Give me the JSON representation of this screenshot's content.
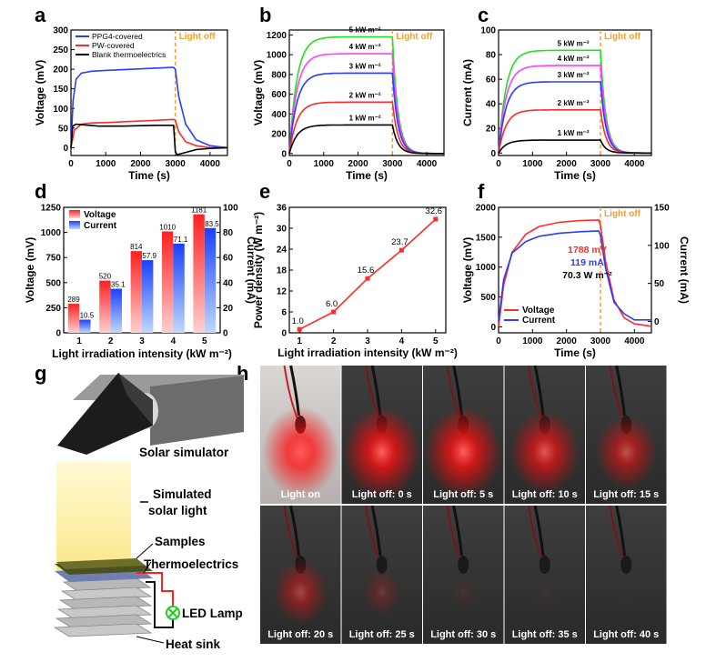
{
  "colors": {
    "red": "#ff2a2a",
    "blue": "#2a3cff",
    "black": "#000000",
    "green": "#22e022",
    "magenta": "#ff40ff",
    "orange": "#f0a030"
  },
  "panels": {
    "a": "a",
    "b": "b",
    "c": "c",
    "d": "d",
    "e": "e",
    "f": "f",
    "g": "g",
    "h": "h"
  },
  "chart_data": [
    {
      "panel": "a",
      "type": "line",
      "xlabel": "Time (s)",
      "ylabel": "Voltage (mV)",
      "xlim": [
        0,
        4500
      ],
      "ylim": [
        -20,
        300
      ],
      "xticks": [
        0,
        1000,
        2000,
        3000,
        4000
      ],
      "yticks": [
        0,
        50,
        100,
        150,
        200,
        250,
        300
      ],
      "annotation": "Light off",
      "light_off_x": 3000,
      "series": [
        {
          "name": "PPG4-covered",
          "color": "blue",
          "x": [
            0,
            60,
            150,
            300,
            600,
            1000,
            1500,
            2000,
            2500,
            2950,
            3000,
            3100,
            3300,
            3600,
            4000,
            4500
          ],
          "y": [
            0,
            120,
            175,
            190,
            195,
            197,
            199,
            201,
            203,
            205,
            200,
            130,
            60,
            20,
            5,
            0
          ]
        },
        {
          "name": "PW-covered",
          "color": "red",
          "x": [
            0,
            100,
            300,
            600,
            1000,
            1500,
            2000,
            2500,
            2950,
            3000,
            3100,
            3300,
            3600,
            4000,
            4500
          ],
          "y": [
            0,
            45,
            60,
            63,
            64,
            66,
            68,
            70,
            72,
            70,
            40,
            15,
            5,
            0,
            0
          ]
        },
        {
          "name": "Blank thermoelectrics",
          "color": "black",
          "x": [
            0,
            50,
            150,
            400,
            800,
            1500,
            2000,
            2500,
            2950,
            3000,
            3050,
            3300,
            3600,
            4000,
            4500
          ],
          "y": [
            0,
            55,
            60,
            58,
            55,
            55,
            56,
            57,
            57,
            -10,
            -18,
            -12,
            -5,
            -2,
            0
          ]
        }
      ]
    },
    {
      "panel": "b",
      "type": "line",
      "xlabel": "Time (s)",
      "ylabel": "Voltage (mV)",
      "xlim": [
        0,
        4500
      ],
      "ylim": [
        -20,
        1250
      ],
      "xticks": [
        0,
        1000,
        2000,
        3000,
        4000
      ],
      "yticks": [
        0,
        200,
        400,
        600,
        800,
        1000,
        1200
      ],
      "annotation": "Light off",
      "light_off_x": 3000,
      "series": [
        {
          "name": "5 kW m⁻²",
          "color": "green",
          "steady": 1181
        },
        {
          "name": "4 kW m⁻²",
          "color": "magenta",
          "steady": 1010
        },
        {
          "name": "3 kW m⁻²",
          "color": "blue",
          "steady": 814
        },
        {
          "name": "2 kW m⁻²",
          "color": "red",
          "steady": 520
        },
        {
          "name": "1 kW m⁻²",
          "color": "black",
          "steady": 289
        }
      ]
    },
    {
      "panel": "c",
      "type": "line",
      "xlabel": "Time (s)",
      "ylabel": "Current (mA)",
      "xlim": [
        0,
        4500
      ],
      "ylim": [
        -2,
        100
      ],
      "xticks": [
        0,
        1000,
        2000,
        3000,
        4000
      ],
      "yticks": [
        0,
        20,
        40,
        60,
        80,
        100
      ],
      "annotation": "Light off",
      "light_off_x": 3000,
      "series": [
        {
          "name": "5 kW m⁻²",
          "color": "green",
          "steady": 83.5
        },
        {
          "name": "4 kW m⁻²",
          "color": "magenta",
          "steady": 71.1
        },
        {
          "name": "3 kW m⁻²",
          "color": "blue",
          "steady": 57.9
        },
        {
          "name": "2 kW m⁻²",
          "color": "red",
          "steady": 35.1
        },
        {
          "name": "1 kW m⁻²",
          "color": "black",
          "steady": 10.5
        }
      ]
    },
    {
      "panel": "d",
      "type": "bar",
      "xlabel": "Light irradiation intensity (kW m⁻²)",
      "ylabel": "Voltage (mV)",
      "ylabel2": "Current (mA)",
      "categories": [
        "1",
        "2",
        "3",
        "4",
        "5"
      ],
      "ylim": [
        0,
        1250
      ],
      "ylim2": [
        0,
        100
      ],
      "yticks": [
        0,
        250,
        500,
        750,
        1000,
        1250
      ],
      "yticks2": [
        0,
        20,
        40,
        60,
        80,
        100
      ],
      "series": [
        {
          "name": "Voltage",
          "color": "red",
          "values": [
            289,
            520,
            814,
            1010,
            1181
          ],
          "labels": [
            "289",
            "520",
            "814",
            "1010",
            "1181"
          ]
        },
        {
          "name": "Current",
          "color": "blue",
          "values": [
            10.5,
            35.1,
            57.9,
            71.1,
            83.5
          ],
          "labels": [
            "10.5",
            "35.1",
            "57.9",
            "71.1",
            "83.5"
          ]
        }
      ]
    },
    {
      "panel": "e",
      "type": "line",
      "xlabel": "Light irradiation intensity (kW m⁻²)",
      "ylabel": "Power density (W m⁻²)",
      "xlim": [
        0.7,
        5.3
      ],
      "ylim": [
        0,
        36
      ],
      "xticks": [
        1,
        2,
        3,
        4,
        5
      ],
      "yticks": [
        0,
        6,
        12,
        18,
        24,
        30,
        36
      ],
      "series": [
        {
          "name": "",
          "color": "red",
          "x": [
            1,
            2,
            3,
            4,
            5
          ],
          "y": [
            1.0,
            6.0,
            15.6,
            23.7,
            32.6
          ],
          "labels": [
            "1.0",
            "6.0",
            "15.6",
            "23.7",
            "32.6"
          ]
        }
      ]
    },
    {
      "panel": "f",
      "type": "line",
      "xlabel": "Time (s)",
      "ylabel": "Voltage (mV)",
      "ylabel2": "Current (mA)",
      "xlim": [
        0,
        4500
      ],
      "ylim": [
        -100,
        2000
      ],
      "ylim2": [
        -15,
        150
      ],
      "xticks": [
        0,
        1000,
        2000,
        3000,
        4000
      ],
      "yticks": [
        0,
        500,
        1000,
        1500,
        2000
      ],
      "yticks2": [
        0,
        50,
        100,
        150
      ],
      "annotation": "Light off",
      "light_off_x": 3000,
      "readouts": [
        "1788 mV",
        "119 mA",
        "70.3 W m⁻²"
      ],
      "series": [
        {
          "name": "Voltage",
          "color": "red",
          "x": [
            0,
            150,
            400,
            800,
            1200,
            1800,
            2400,
            2950,
            3000,
            3150,
            3400,
            3700,
            4000,
            4500
          ],
          "y": [
            0,
            700,
            1250,
            1550,
            1680,
            1750,
            1780,
            1788,
            1700,
            1100,
            450,
            150,
            50,
            10
          ]
        },
        {
          "name": "Current",
          "color": "blue",
          "x": [
            0,
            150,
            400,
            800,
            1200,
            1800,
            2400,
            2950,
            3000,
            3150,
            3400,
            3700,
            4000,
            4500
          ],
          "y2": [
            0,
            55,
            90,
            105,
            112,
            116,
            118,
            119,
            113,
            70,
            25,
            10,
            2,
            2
          ]
        }
      ]
    }
  ],
  "diagram_g": {
    "labels": [
      "Solar simulator",
      "Simulated solar light",
      "Samples",
      "Thermoelectrics",
      "LED Lamp",
      "Heat sink"
    ]
  },
  "photos_h": {
    "captions": [
      "Light on",
      "Light off: 0 s",
      "Light off: 5 s",
      "Light off: 10 s",
      "Light off: 15 s",
      "Light off: 20 s",
      "Light off: 25 s",
      "Light off: 30 s",
      "Light off: 35 s",
      "Light off: 40 s"
    ],
    "glow": [
      1.0,
      1.0,
      1.0,
      0.85,
      0.7,
      0.55,
      0.25,
      0.08,
      0.04,
      0.02
    ]
  }
}
